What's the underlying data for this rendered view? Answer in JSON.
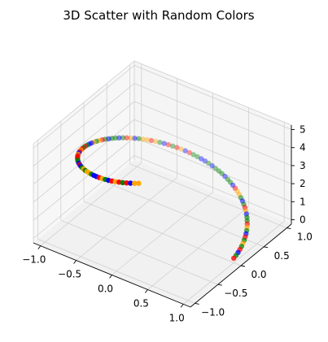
{
  "chart_data": {
    "type": "scatter",
    "projection": "3d",
    "title": "3D Scatter with Random Colors",
    "grid": true,
    "xlim": [
      -1.1,
      1.1
    ],
    "ylim": [
      -1.1,
      1.1
    ],
    "zlim": [
      -0.25,
      5.25
    ],
    "x_ticks": [
      -1.0,
      -0.5,
      0.0,
      0.5,
      1.0
    ],
    "y_ticks": [
      -1.0,
      -0.5,
      0.0,
      0.5,
      1.0
    ],
    "z_ticks": [
      0,
      1,
      2,
      3,
      4,
      5
    ],
    "x_tick_labels": [
      "−1.0",
      "−0.5",
      "0.0",
      "0.5",
      "1.0"
    ],
    "y_tick_labels": [
      "−1.0",
      "−0.5",
      "0.0",
      "0.5",
      "1.0"
    ],
    "z_tick_labels": [
      "0",
      "1",
      "2",
      "3",
      "4",
      "5"
    ],
    "marker_colors": {
      "red": "#ff0000",
      "blue": "#0000ff",
      "green": "#008000",
      "orange": "#ffa500"
    },
    "points": {
      "description_of_shape": "helix x=cos(t), y=sin(t), z=t over t in [0,5]",
      "t_start": 0,
      "t_end": 5,
      "count": 100,
      "colors": [
        "red",
        "green",
        "blue",
        "red",
        "green",
        "orange",
        "green",
        "red",
        "blue",
        "green",
        "orange",
        "red",
        "green",
        "green",
        "blue",
        "orange",
        "red",
        "green",
        "blue",
        "green",
        "orange",
        "orange",
        "red",
        "blue",
        "green",
        "green",
        "blue",
        "green",
        "green",
        "green",
        "blue",
        "green",
        "blue",
        "blue",
        "green",
        "green",
        "red",
        "blue",
        "orange",
        "red",
        "green",
        "red",
        "blue",
        "green",
        "orange",
        "red",
        "orange",
        "orange",
        "green",
        "blue",
        "orange",
        "red",
        "green",
        "blue",
        "green",
        "green",
        "blue",
        "green",
        "red",
        "orange",
        "green",
        "orange",
        "blue",
        "blue",
        "green",
        "red",
        "green",
        "red",
        "orange",
        "red",
        "blue",
        "orange",
        "red",
        "red",
        "red",
        "green",
        "green",
        "blue",
        "red",
        "blue",
        "green",
        "orange",
        "green",
        "orange",
        "orange",
        "green",
        "blue",
        "blue",
        "red",
        "orange",
        "green",
        "blue",
        "red",
        "orange",
        "red",
        "green",
        "red",
        "blue",
        "orange",
        "orange"
      ]
    }
  }
}
